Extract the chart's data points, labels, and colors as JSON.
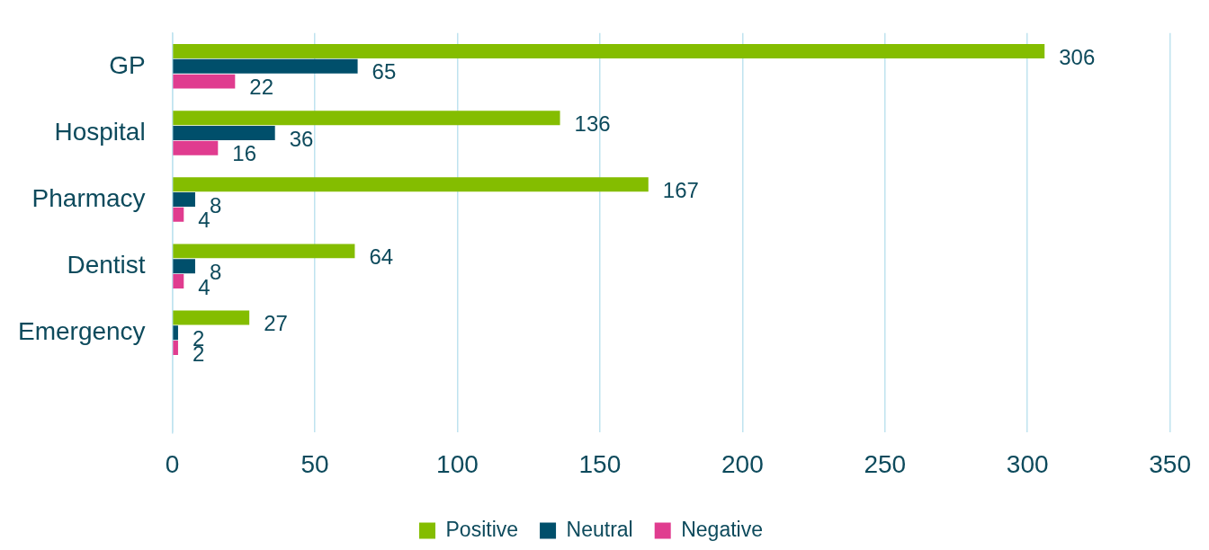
{
  "chart_data": {
    "type": "bar",
    "orientation": "horizontal",
    "categories": [
      "GP",
      "Hospital",
      "Pharmacy",
      "Dentist",
      "Emergency",
      null
    ],
    "series": [
      {
        "name": "Positive",
        "color": "#84bd00",
        "values": [
          306,
          136,
          167,
          64,
          27,
          null
        ]
      },
      {
        "name": "Neutral",
        "color": "#004f6b",
        "values": [
          65,
          36,
          8,
          8,
          2,
          null
        ]
      },
      {
        "name": "Negative",
        "color": "#e03c8f",
        "values": [
          22,
          16,
          4,
          4,
          2,
          null
        ]
      }
    ],
    "xlim": [
      0,
      350
    ],
    "xticks": [
      0,
      50,
      100,
      150,
      200,
      250,
      300,
      350
    ],
    "grid": "x",
    "legend": "bottom",
    "data_labels": true
  }
}
